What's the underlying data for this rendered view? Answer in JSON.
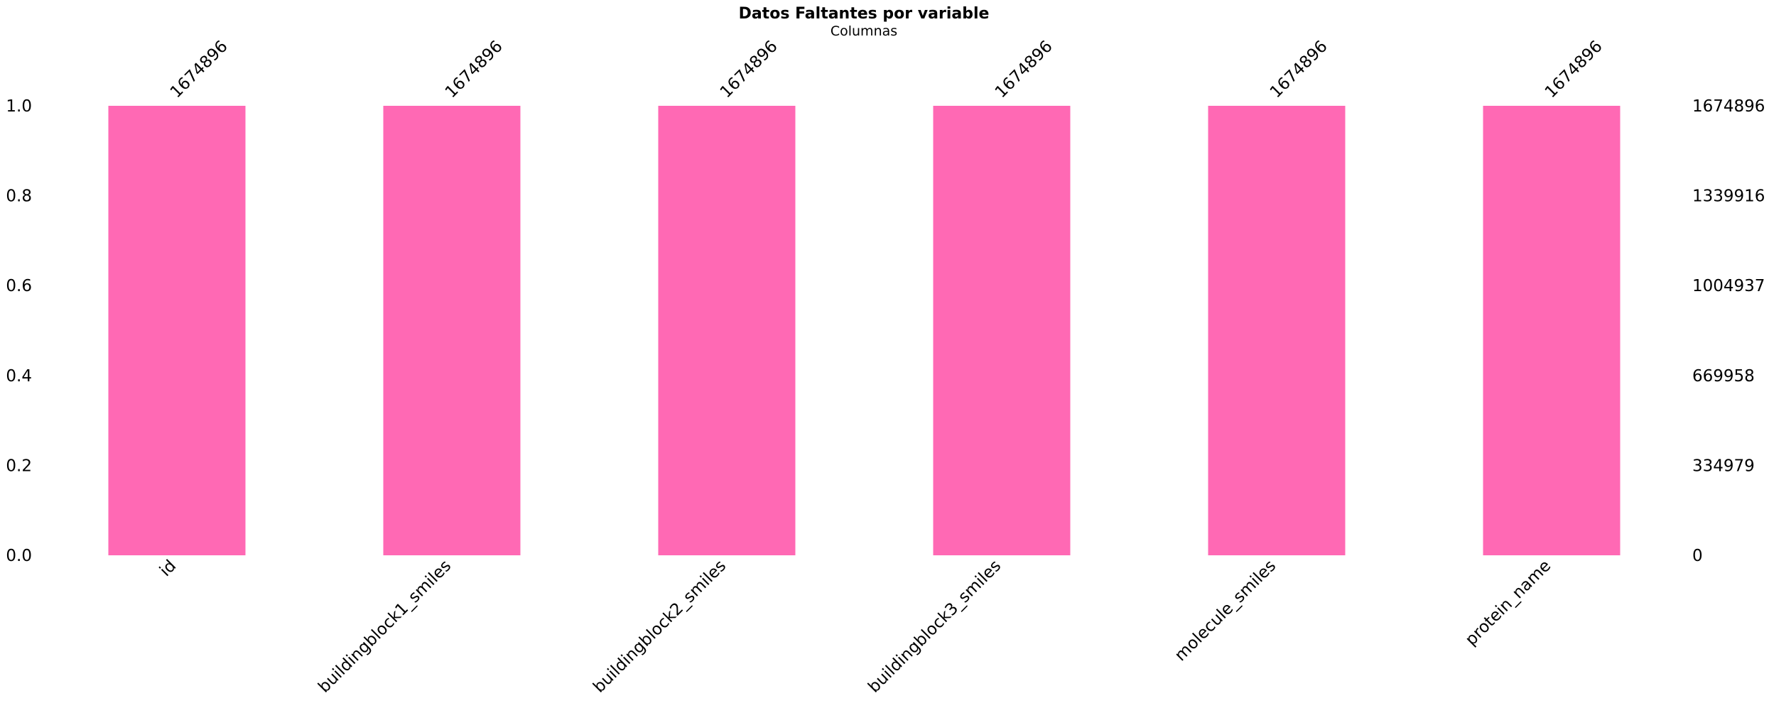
{
  "chart_data": {
    "type": "bar",
    "title": "Datos Faltantes por variable",
    "subtitle": "Columnas",
    "categories": [
      "id",
      "buildingblock1_smiles",
      "buildingblock2_smiles",
      "buildingblock3_smiles",
      "molecule_smiles",
      "protein_name"
    ],
    "values": [
      1.0,
      1.0,
      1.0,
      1.0,
      1.0,
      1.0
    ],
    "counts": [
      "1674896",
      "1674896",
      "1674896",
      "1674896",
      "1674896",
      "1674896"
    ],
    "ylim": [
      0,
      1
    ],
    "left_ticks": [
      "0.0",
      "0.2",
      "0.4",
      "0.6",
      "0.8",
      "1.0"
    ],
    "right_ticks": [
      "0",
      "334979",
      "669958",
      "1004937",
      "1339916",
      "1674896"
    ],
    "bar_color": "#ff69b4",
    "grid": false,
    "legend": "none"
  }
}
